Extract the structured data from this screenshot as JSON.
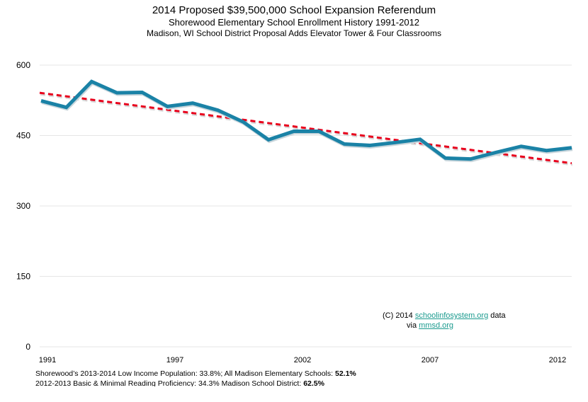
{
  "chart_data": {
    "type": "line",
    "title": "2014 Proposed $39,500,000 School Expansion Referendum",
    "subtitle": "Shorewood Elementary School Enrollment History 1991-2012",
    "subtitle2": "Madison, WI School District Proposal Adds Elevator Tower & Four Classrooms",
    "xlabel": "",
    "ylabel": "",
    "x": [
      1991,
      1992,
      1993,
      1994,
      1995,
      1996,
      1997,
      1998,
      1999,
      2000,
      2001,
      2002,
      2003,
      2004,
      2005,
      2006,
      2007,
      2008,
      2009,
      2010,
      2011,
      2012
    ],
    "x_tick_labels": [
      "1991",
      "1997",
      "2002",
      "2007",
      "2012"
    ],
    "y_ticks": [
      0,
      150,
      300,
      450,
      600
    ],
    "ylim": [
      0,
      600
    ],
    "grid": true,
    "series": [
      {
        "name": "Enrollment",
        "color": "#1a82a6",
        "values": [
          524,
          510,
          565,
          541,
          542,
          512,
          519,
          504,
          479,
          441,
          459,
          459,
          432,
          429,
          435,
          442,
          402,
          400,
          414,
          427,
          418,
          424
        ]
      },
      {
        "name": "Linear trend",
        "color": "#e8001c",
        "style": "dashed",
        "values_start_end": [
          541,
          391
        ]
      }
    ]
  },
  "credit": {
    "prefix": "(C) 2014 ",
    "link1": "schoolinfosystem.org",
    "middle": " data",
    "via": "via ",
    "link2": "mmsd.org"
  },
  "notes": {
    "line1_text": "Shorewood’s 2013-2014 Low Income Population: 33.8%; All Madison Elementary Schools: ",
    "line1_bold": "52.1%",
    "line2_text": "2012-2013 Basic & Minimal Reading Proficiency: 34.3% Madison School District: ",
    "line2_bold": "62.5%"
  }
}
